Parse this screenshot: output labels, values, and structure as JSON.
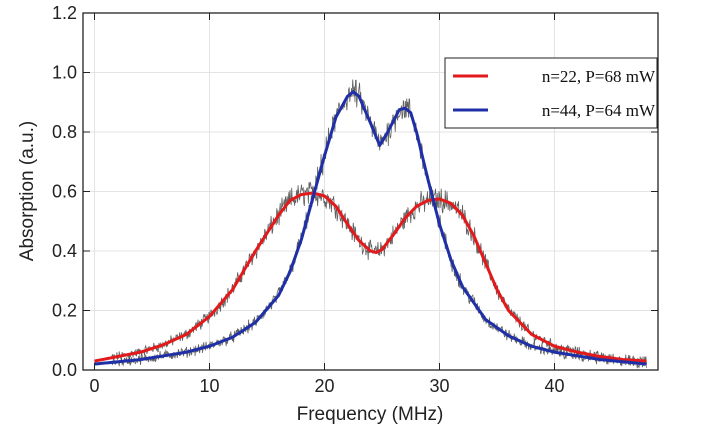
{
  "chart_data": {
    "type": "line",
    "xlabel": "Frequency (MHz)",
    "ylabel": "Absorption (a.u.)",
    "xlim": [
      -1,
      49
    ],
    "ylim": [
      0,
      1.2
    ],
    "x_ticks": [
      0,
      10,
      20,
      30,
      40
    ],
    "x_tick_labels": [
      "0",
      "10",
      "20",
      "30",
      "40"
    ],
    "y_ticks": [
      0.0,
      0.2,
      0.4,
      0.6,
      0.8,
      1.0,
      1.2
    ],
    "y_tick_labels": [
      "0.0",
      "0.2",
      "0.4",
      "0.6",
      "0.8",
      "1.0",
      "1.2"
    ],
    "grid": true,
    "legend_position": "top-right",
    "series": [
      {
        "name": "n=22, P=68 mW",
        "color": "#e31a1c",
        "x": [
          0,
          2,
          4,
          6,
          8,
          10,
          12,
          14,
          16,
          17,
          18,
          19,
          20,
          21,
          22,
          23,
          24,
          24.5,
          25,
          26,
          27,
          28,
          29,
          30,
          31,
          32,
          33,
          34,
          35,
          36,
          38,
          40,
          42,
          44,
          46,
          48
        ],
        "y": [
          0.03,
          0.045,
          0.06,
          0.085,
          0.12,
          0.18,
          0.27,
          0.4,
          0.52,
          0.57,
          0.59,
          0.595,
          0.585,
          0.55,
          0.49,
          0.435,
          0.4,
          0.395,
          0.405,
          0.455,
          0.51,
          0.55,
          0.57,
          0.575,
          0.56,
          0.52,
          0.45,
          0.36,
          0.27,
          0.2,
          0.12,
          0.08,
          0.06,
          0.045,
          0.035,
          0.03
        ]
      },
      {
        "name": "n=44, P=64 mW",
        "color": "#1f2fa8",
        "x": [
          0,
          4,
          8,
          10,
          12,
          14,
          16,
          17,
          18,
          19,
          20,
          21,
          22,
          22.5,
          23,
          24,
          24.8,
          25.5,
          26.5,
          27,
          27.5,
          28,
          29,
          30,
          31,
          32,
          34,
          36,
          38,
          40,
          44,
          48
        ],
        "y": [
          0.02,
          0.035,
          0.06,
          0.08,
          0.11,
          0.16,
          0.25,
          0.33,
          0.44,
          0.58,
          0.72,
          0.85,
          0.92,
          0.935,
          0.92,
          0.83,
          0.755,
          0.8,
          0.875,
          0.88,
          0.865,
          0.8,
          0.64,
          0.49,
          0.37,
          0.28,
          0.17,
          0.115,
          0.08,
          0.06,
          0.035,
          0.02
        ]
      }
    ],
    "raw_data": {
      "name": "",
      "color": "#444444",
      "description": "noisy measured spectra (gray) underlying both fits"
    }
  }
}
